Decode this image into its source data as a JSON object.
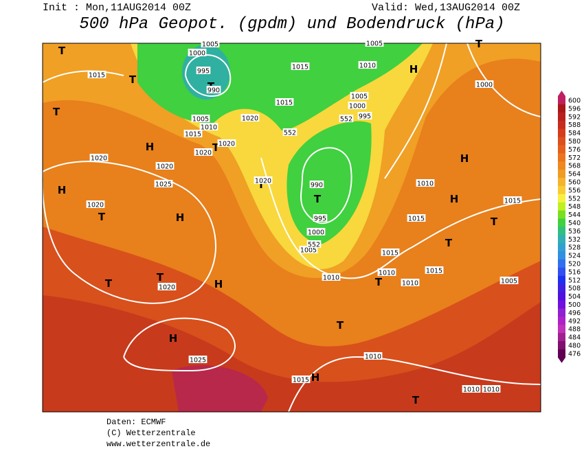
{
  "header": {
    "init": "Init : Mon,11AUG2014 00Z",
    "valid": "Valid: Wed,13AUG2014 00Z",
    "title": "500 hPa Geopot. (gpdm) und Bodendruck (hPa)"
  },
  "map_labels": [
    "T",
    "T",
    "T",
    "H",
    "H",
    "T",
    "H",
    "T",
    "T",
    "H",
    "H",
    "T",
    "T",
    "T",
    "H",
    "T",
    "H",
    "H",
    "T",
    "T",
    "T",
    "T",
    "H",
    "T",
    "T",
    "1015",
    "1005",
    "1000",
    "995",
    "990",
    "1015",
    "1010",
    "1005",
    "1000",
    "1005",
    "1000",
    "995",
    "1015",
    "1020",
    "1005",
    "1010",
    "1015",
    "1020",
    "1020",
    "1020",
    "1020",
    "1025",
    "1020",
    "1020",
    "990",
    "995",
    "1000",
    "1005",
    "1010",
    "1010",
    "1015",
    "1015",
    "1015",
    "1010",
    "1010",
    "1015",
    "1005",
    "1020",
    "1025",
    "1015",
    "1010",
    "1010",
    "1010",
    "552",
    "552",
    "552"
  ],
  "scale": {
    "values": [
      600,
      596,
      592,
      588,
      584,
      580,
      576,
      572,
      568,
      564,
      560,
      556,
      552,
      548,
      544,
      540,
      536,
      532,
      528,
      524,
      520,
      516,
      512,
      508,
      504,
      500,
      496,
      492,
      488,
      484,
      480,
      476
    ],
    "colors": [
      "#c02060",
      "#a81818",
      "#b82020",
      "#c82c1c",
      "#d43c1c",
      "#dc501c",
      "#e4601c",
      "#ec741c",
      "#f08820",
      "#f09c24",
      "#f4b42c",
      "#f8cc34",
      "#f8f040",
      "#c0f020",
      "#78e020",
      "#40d040",
      "#30c080",
      "#30b0b0",
      "#30a0d0",
      "#3090e0",
      "#3070f0",
      "#3050f0",
      "#2030f0",
      "#4020e0",
      "#5010e0",
      "#7010e0",
      "#9020d0",
      "#b020c8",
      "#c030b8",
      "#a02090",
      "#801070",
      "#600050"
    ]
  },
  "footer": [
    "Daten: ECMWF",
    "(C) Wetterzentrale",
    "www.wetterzentrale.de"
  ]
}
